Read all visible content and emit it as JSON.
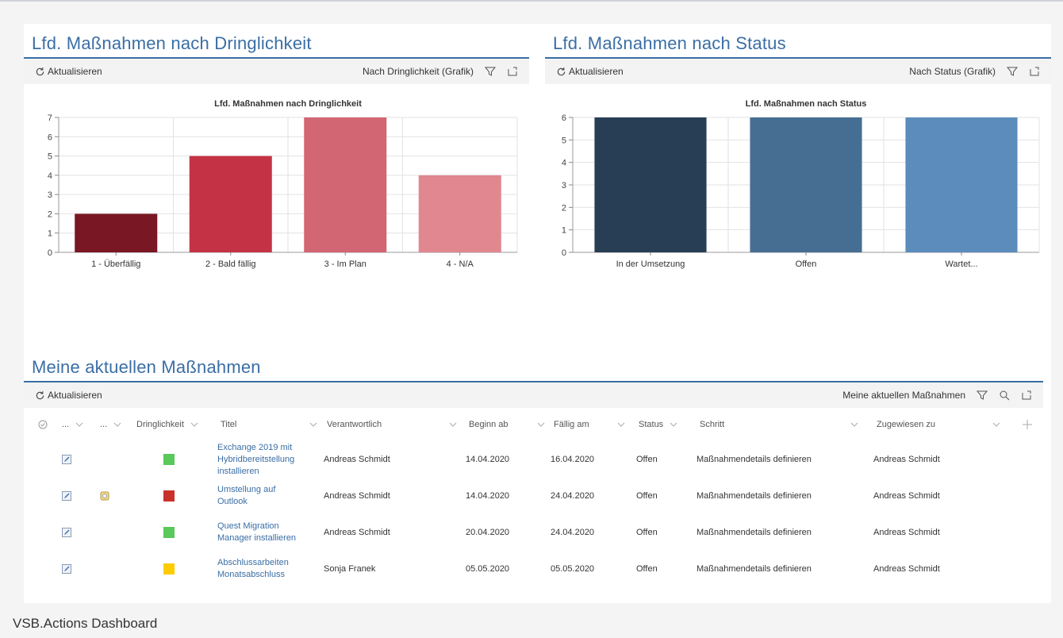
{
  "footer_title": "VSB.Actions Dashboard",
  "panel_urgency": {
    "title": "Lfd. Maßnahmen nach Dringlichkeit",
    "refresh_label": "Aktualisieren",
    "view_label": "Nach Dringlichkeit (Grafik)"
  },
  "panel_status": {
    "title": "Lfd. Maßnahmen nach Status",
    "refresh_label": "Aktualisieren",
    "view_label": "Nach Status (Grafik)"
  },
  "chart_data": [
    {
      "type": "bar",
      "title": "Lfd. Maßnahmen nach Dringlichkeit",
      "categories": [
        "1 - Überfällig",
        "2 - Bald fällig",
        "3 - Im Plan",
        "4 - N/A"
      ],
      "values": [
        2,
        5,
        7,
        4
      ],
      "colors": [
        "#7a1724",
        "#c43345",
        "#d36673",
        "#e0878f"
      ],
      "ylim": [
        0,
        7
      ],
      "yticks": [
        0,
        1,
        2,
        3,
        4,
        5,
        6,
        7
      ],
      "grid": true,
      "legend": "none"
    },
    {
      "type": "bar",
      "title": "Lfd. Maßnahmen nach Status",
      "categories": [
        "In der Umsetzung",
        "Offen",
        "Wartet..."
      ],
      "values": [
        6,
        6,
        6
      ],
      "colors": [
        "#283e54",
        "#466e93",
        "#5b8cbc"
      ],
      "ylim": [
        0,
        6
      ],
      "yticks": [
        0,
        1,
        2,
        3,
        4,
        5,
        6
      ],
      "grid": true,
      "legend": "none"
    }
  ],
  "table": {
    "title": "Meine aktuellen Maßnahmen",
    "refresh_label": "Aktualisieren",
    "view_label": "Meine aktuellen Maßnahmen",
    "col_dots1": "...",
    "col_dots2": "...",
    "columns": {
      "urgency": "Dringlichkeit",
      "title": "Titel",
      "owner": "Verantwortlich",
      "start": "Beginn ab",
      "due": "Fällig am",
      "status": "Status",
      "step": "Schritt",
      "assigned": "Zugewiesen zu"
    },
    "urgency_colors": {
      "green": "#5ac85a",
      "red": "#c8322a",
      "yellow": "#ffcc00"
    },
    "rows": [
      {
        "title": "Exchange 2019 mit Hybridbereitstellung installieren",
        "title_lines": [
          "Exchange 2019 mit",
          "Hybridbereitstellung",
          "installieren"
        ],
        "urgency": "green",
        "attachment": false,
        "owner": "Andreas Schmidt",
        "start": "14.04.2020",
        "due": "16.04.2020",
        "status": "Offen",
        "step": "Maßnahmendetails definieren",
        "assigned": "Andreas Schmidt"
      },
      {
        "title": "Umstellung auf Outlook",
        "title_lines": [
          "Umstellung auf",
          "Outlook"
        ],
        "urgency": "red",
        "attachment": true,
        "owner": "Andreas Schmidt",
        "start": "14.04.2020",
        "due": "24.04.2020",
        "status": "Offen",
        "step": "Maßnahmendetails definieren",
        "assigned": "Andreas Schmidt"
      },
      {
        "title": "Quest Migration Manager installieren",
        "title_lines": [
          "Quest Migration",
          "Manager installieren"
        ],
        "urgency": "green",
        "attachment": false,
        "owner": "Andreas Schmidt",
        "start": "20.04.2020",
        "due": "24.04.2020",
        "status": "Offen",
        "step": "Maßnahmendetails definieren",
        "assigned": "Andreas Schmidt"
      },
      {
        "title": "Abschlussarbeiten Monatsabschluss",
        "title_lines": [
          "Abschlussarbeiten",
          "Monatsabschluss"
        ],
        "urgency": "yellow",
        "attachment": false,
        "owner": "Sonja Franek",
        "start": "05.05.2020",
        "due": "05.05.2020",
        "status": "Offen",
        "step": "Maßnahmendetails definieren",
        "assigned": "Andreas Schmidt"
      }
    ]
  }
}
